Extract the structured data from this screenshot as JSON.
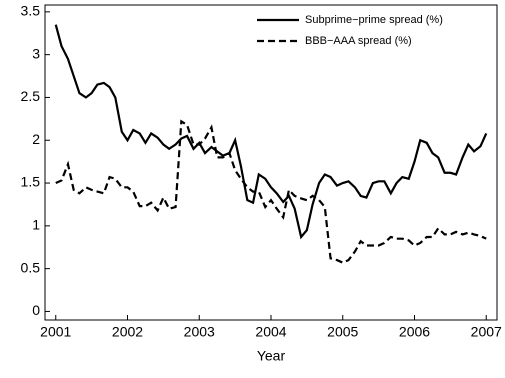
{
  "chart_data": {
    "type": "line",
    "xlabel": "Year",
    "x": [
      2001.0,
      2001.08,
      2001.17,
      2001.25,
      2001.33,
      2001.42,
      2001.5,
      2001.58,
      2001.67,
      2001.75,
      2001.83,
      2001.92,
      2002.0,
      2002.08,
      2002.17,
      2002.25,
      2002.33,
      2002.42,
      2002.5,
      2002.58,
      2002.67,
      2002.75,
      2002.83,
      2002.92,
      2003.0,
      2003.08,
      2003.17,
      2003.25,
      2003.33,
      2003.42,
      2003.5,
      2003.58,
      2003.67,
      2003.75,
      2003.83,
      2003.92,
      2004.0,
      2004.08,
      2004.17,
      2004.25,
      2004.33,
      2004.42,
      2004.5,
      2004.58,
      2004.67,
      2004.75,
      2004.83,
      2004.92,
      2005.0,
      2005.08,
      2005.17,
      2005.25,
      2005.33,
      2005.42,
      2005.5,
      2005.58,
      2005.67,
      2005.75,
      2005.83,
      2005.92,
      2006.0,
      2006.08,
      2006.17,
      2006.25,
      2006.33,
      2006.42,
      2006.5,
      2006.58,
      2006.67,
      2006.75,
      2006.83,
      2006.92,
      2007.0
    ],
    "series": [
      {
        "name": "Subprime−prime spread (%)",
        "color": "#000000",
        "dash": "solid",
        "values": [
          3.35,
          3.1,
          2.95,
          2.75,
          2.55,
          2.5,
          2.55,
          2.65,
          2.67,
          2.62,
          2.5,
          2.1,
          2.0,
          2.12,
          2.08,
          1.97,
          2.08,
          2.03,
          1.95,
          1.9,
          1.95,
          2.02,
          2.05,
          1.9,
          1.97,
          1.85,
          1.92,
          1.87,
          1.82,
          1.85,
          2.0,
          1.7,
          1.3,
          1.27,
          1.6,
          1.55,
          1.45,
          1.38,
          1.28,
          1.35,
          1.2,
          0.87,
          0.95,
          1.25,
          1.5,
          1.6,
          1.57,
          1.47,
          1.5,
          1.52,
          1.45,
          1.35,
          1.33,
          1.5,
          1.52,
          1.52,
          1.38,
          1.5,
          1.57,
          1.55,
          1.75,
          2.0,
          1.97,
          1.85,
          1.8,
          1.62,
          1.62,
          1.6,
          1.8,
          1.95,
          1.87,
          1.93,
          2.08
        ]
      },
      {
        "name": "BBB−AAA spread (%)",
        "color": "#000000",
        "dash": "dashed",
        "values": [
          1.5,
          1.53,
          1.72,
          1.42,
          1.38,
          1.45,
          1.42,
          1.4,
          1.38,
          1.57,
          1.55,
          1.45,
          1.45,
          1.4,
          1.23,
          1.23,
          1.27,
          1.18,
          1.33,
          1.2,
          1.22,
          2.22,
          2.18,
          1.95,
          1.95,
          2.02,
          2.15,
          1.8,
          1.8,
          1.85,
          1.65,
          1.55,
          1.45,
          1.4,
          1.4,
          1.22,
          1.3,
          1.2,
          1.1,
          1.42,
          1.35,
          1.32,
          1.3,
          1.35,
          1.3,
          1.22,
          0.62,
          0.6,
          0.57,
          0.6,
          0.7,
          0.82,
          0.77,
          0.77,
          0.77,
          0.8,
          0.87,
          0.85,
          0.85,
          0.83,
          0.77,
          0.8,
          0.87,
          0.87,
          0.97,
          0.9,
          0.9,
          0.93,
          0.9,
          0.92,
          0.9,
          0.88,
          0.85
        ]
      }
    ],
    "xlim": [
      2000.85,
      2007.15
    ],
    "xticks": [
      2001,
      2002,
      2003,
      2004,
      2005,
      2006,
      2007
    ],
    "ylim": [
      -0.1,
      3.58
    ],
    "yticks": [
      0,
      0.5,
      1,
      1.5,
      2,
      2.5,
      3,
      3.5
    ],
    "legend": "upper right"
  }
}
